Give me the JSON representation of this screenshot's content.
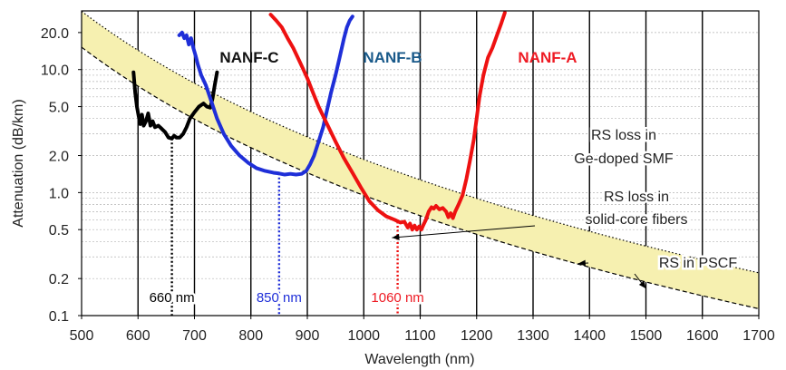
{
  "chart_data": {
    "type": "line",
    "title": "",
    "xlabel": "Wavelength (nm)",
    "ylabel": "Attenuation (dB/km)",
    "xscale": "linear",
    "yscale": "log",
    "xlim": [
      500,
      1700
    ],
    "ylim": [
      0.1,
      30
    ],
    "grid": true,
    "xticks": [
      500,
      600,
      700,
      800,
      900,
      1000,
      1100,
      1200,
      1300,
      1400,
      1500,
      1600,
      1700
    ],
    "yticks": [
      0.1,
      0.2,
      0.5,
      1.0,
      2.0,
      5.0,
      10.0,
      20.0
    ],
    "ytick_labels": [
      "0.1",
      "0.2",
      "0.5",
      "1.0",
      "2.0",
      "5.0",
      "10.0",
      "20.0"
    ],
    "series": [
      {
        "name": "NANF-C",
        "color": "#000000",
        "x": [
          592,
          595,
          598,
          601,
          604,
          607,
          610,
          614,
          618,
          622,
          626,
          630,
          636,
          642,
          648,
          654,
          660,
          664,
          668,
          674,
          680,
          686,
          692,
          700,
          708,
          716,
          722,
          728,
          732,
          736,
          740
        ],
        "y": [
          9.5,
          6.5,
          5.0,
          4.2,
          3.6,
          4.3,
          3.5,
          3.8,
          4.4,
          3.5,
          3.8,
          3.4,
          3.5,
          3.3,
          3.1,
          2.8,
          2.75,
          2.9,
          2.8,
          2.8,
          3.0,
          3.4,
          4.0,
          4.5,
          5.0,
          5.3,
          5.0,
          4.9,
          5.8,
          7.5,
          9.5
        ]
      },
      {
        "name": "NANF-B",
        "color": "#1f2fd8",
        "x": [
          673,
          678,
          682,
          686,
          690,
          694,
          698,
          702,
          706,
          712,
          720,
          730,
          740,
          752,
          765,
          780,
          795,
          810,
          825,
          840,
          850,
          860,
          870,
          880,
          890,
          898,
          905,
          912,
          920,
          928,
          935,
          942,
          950,
          958,
          965,
          970,
          975,
          980
        ],
        "y": [
          19,
          20,
          18,
          19,
          16,
          18,
          15,
          13,
          11,
          9,
          7.5,
          5.5,
          4.0,
          3.0,
          2.4,
          2.0,
          1.75,
          1.58,
          1.5,
          1.45,
          1.43,
          1.4,
          1.42,
          1.4,
          1.42,
          1.5,
          1.7,
          2.0,
          2.6,
          3.4,
          4.7,
          6.5,
          9.0,
          13,
          18,
          22,
          25,
          27
        ]
      },
      {
        "name": "NANF-A",
        "color": "#ee1111",
        "x": [
          835,
          845,
          855,
          865,
          875,
          885,
          893,
          900,
          910,
          920,
          935,
          950,
          965,
          980,
          995,
          1010,
          1025,
          1040,
          1055,
          1065,
          1072,
          1078,
          1082,
          1086,
          1090,
          1094,
          1098,
          1102,
          1106,
          1110,
          1115,
          1120,
          1124,
          1128,
          1134,
          1140,
          1146,
          1150,
          1154,
          1158,
          1162,
          1168,
          1175,
          1182,
          1188,
          1195,
          1200,
          1205,
          1212,
          1220,
          1228,
          1236,
          1244,
          1250
        ],
        "y": [
          28,
          25,
          22,
          18,
          15,
          12,
          10,
          8.5,
          6.5,
          5.0,
          3.6,
          2.6,
          1.9,
          1.45,
          1.1,
          0.85,
          0.72,
          0.64,
          0.6,
          0.57,
          0.58,
          0.52,
          0.56,
          0.5,
          0.54,
          0.5,
          0.53,
          0.5,
          0.55,
          0.6,
          0.7,
          0.76,
          0.74,
          0.78,
          0.73,
          0.75,
          0.7,
          0.63,
          0.68,
          0.62,
          0.7,
          0.8,
          0.95,
          1.3,
          1.8,
          2.7,
          4.0,
          6.0,
          9.0,
          12.5,
          15,
          19,
          24,
          29
        ]
      },
      {
        "name": "RS loss in Ge-doped SMF",
        "color": "#000000",
        "style": "dotted-upper-band",
        "rs_coefficient_db_km_um4": 1.86,
        "x": [
          500,
          600,
          700,
          800,
          900,
          1000,
          1100,
          1200,
          1300,
          1400,
          1500,
          1600,
          1700
        ],
        "y": [
          29.8,
          14.4,
          7.75,
          4.54,
          2.84,
          1.86,
          1.27,
          0.897,
          0.651,
          0.484,
          0.367,
          0.284,
          0.223
        ]
      },
      {
        "name": "RS loss in solid-core fibers",
        "color": "#000000",
        "style": "shaded-band",
        "band_color": "#f6f0b0"
      },
      {
        "name": "RS in PSCF",
        "color": "#000000",
        "style": "dashed-lower-band",
        "rs_coefficient_db_km_um4": 0.95,
        "x": [
          500,
          600,
          700,
          800,
          900,
          1000,
          1100,
          1200,
          1300,
          1400,
          1500,
          1600,
          1700
        ],
        "y": [
          15.2,
          7.33,
          3.96,
          2.32,
          1.45,
          0.95,
          0.649,
          0.458,
          0.333,
          0.247,
          0.188,
          0.145,
          0.114
        ]
      }
    ],
    "series_labels": [
      {
        "text": "NANF-C",
        "color": "#111111"
      },
      {
        "text": "NANF-B",
        "color": "#1a5a8a"
      },
      {
        "text": "NANF-A",
        "color": "#ee1b24"
      }
    ],
    "annotations": [
      {
        "lines": [
          "RS loss in",
          "Ge-doped SMF"
        ],
        "target_x": 1050,
        "target_y": 0.43
      },
      {
        "lines": [
          "RS loss in",
          "solid-core fibers"
        ],
        "target_x": 1380,
        "target_y": 0.265
      },
      {
        "lines": [
          "RS in PSCF"
        ],
        "target_x": 1500,
        "target_y": 0.166
      }
    ],
    "markers": [
      {
        "label": "660 nm",
        "x": 660,
        "y": 2.75,
        "color": "#000000"
      },
      {
        "label": "850 nm",
        "x": 850,
        "y": 1.43,
        "color": "#1f2fd8"
      },
      {
        "label": "1060 nm",
        "x": 1060,
        "y": 0.58,
        "color": "#ee1111",
        "label_color": "#ee1b24"
      }
    ]
  }
}
